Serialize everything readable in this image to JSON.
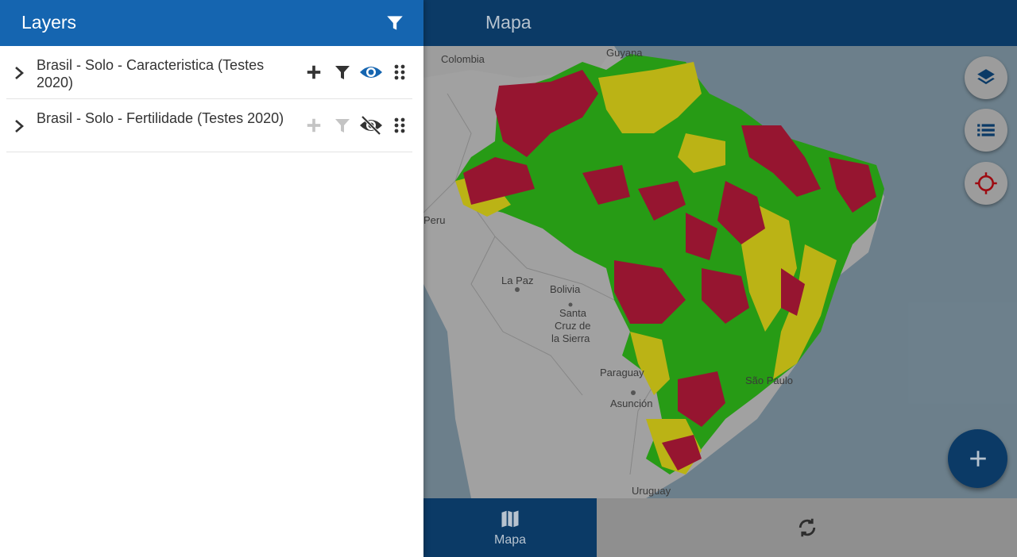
{
  "panel": {
    "title": "Layers",
    "layers": [
      {
        "name": "Brasil - Solo - Caracteristica (Testes 2020)",
        "visible": true
      },
      {
        "name": "Brasil - Solo - Fertilidade (Testes 2020)",
        "visible": false
      }
    ]
  },
  "map": {
    "title": "Mapa",
    "place_labels": [
      "Colombia",
      "Guyana",
      "Peru",
      "La Paz",
      "Bolivia",
      "Santa",
      "Cruz de",
      "la Sierra",
      "Paraguay",
      "Asunción",
      "Uruguay",
      "São Paulo"
    ]
  },
  "bottom_nav": {
    "map_label": "Mapa"
  },
  "colors": {
    "panel_header": "#1565b0",
    "app_header": "#0b3a66",
    "soil_red": "#9d0a28",
    "soil_green": "#1ea20a",
    "soil_yellow": "#c6be0a"
  },
  "icons": [
    "filter-icon",
    "chevron-right-icon",
    "plus-icon",
    "eye-icon",
    "eye-off-icon",
    "drag-handle-icon",
    "layers-icon",
    "list-icon",
    "crosshair-icon",
    "map-icon",
    "sync-icon"
  ]
}
